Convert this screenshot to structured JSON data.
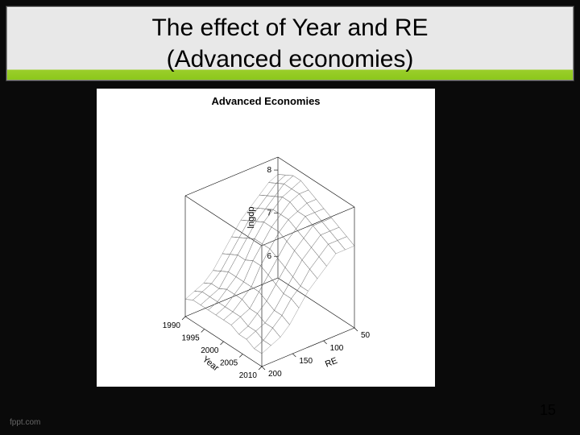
{
  "slide": {
    "title_line1": "The effect of Year and RE",
    "title_line2": "(Advanced economies)",
    "title_fontsize": 30,
    "title_color": "#000000",
    "band_gradient_top": "#e8e8e8",
    "band_gradient_accent": "#8bc81b",
    "background_color": "#0a0a0a",
    "page_number": "15",
    "footer_logo_text": "fppt.com"
  },
  "chart": {
    "type": "surface-3d",
    "title": "Advanced Economies",
    "title_fontsize": 13,
    "title_fontweight": "bold",
    "panel_background": "#ffffff",
    "cube_line_color": "#000000",
    "cube_line_width": 0.6,
    "mesh_color": "#666666",
    "mesh_stroke_width": 0.35,
    "x_axis": {
      "label": "Year",
      "ticks": [
        1990,
        1995,
        2000,
        2005,
        2010
      ],
      "range": [
        1990,
        2010
      ]
    },
    "y_axis": {
      "label": "RE",
      "ticks": [
        50,
        100,
        150,
        200
      ],
      "range": [
        50,
        200
      ]
    },
    "z_axis": {
      "label": "lngdp",
      "ticks": [
        6,
        7,
        8
      ],
      "range": [
        5.5,
        8.3
      ]
    },
    "surface_grid": {
      "year_samples": [
        1990,
        1992,
        1994,
        1996,
        1998,
        2000,
        2002,
        2004,
        2006,
        2008,
        2010
      ],
      "re_samples": [
        50,
        65,
        80,
        95,
        110,
        125,
        140,
        155,
        170,
        185,
        200
      ],
      "z": [
        [
          7.9,
          7.8,
          7.6,
          7.4,
          7.2,
          6.9,
          6.6,
          6.3,
          6.1,
          6.0,
          5.9
        ],
        [
          8.0,
          7.9,
          7.7,
          7.5,
          7.3,
          7.0,
          6.7,
          6.4,
          6.2,
          6.1,
          6.0
        ],
        [
          8.1,
          8.0,
          7.8,
          7.6,
          7.4,
          7.1,
          6.8,
          6.5,
          6.2,
          6.1,
          6.0
        ],
        [
          8.1,
          8.0,
          7.9,
          7.7,
          7.5,
          7.2,
          6.8,
          6.5,
          6.3,
          6.1,
          6.0
        ],
        [
          8.0,
          8.0,
          7.9,
          7.7,
          7.5,
          7.2,
          6.9,
          6.5,
          6.3,
          6.1,
          6.0
        ],
        [
          7.9,
          7.9,
          7.8,
          7.7,
          7.5,
          7.2,
          6.9,
          6.5,
          6.3,
          6.1,
          6.0
        ],
        [
          7.8,
          7.8,
          7.8,
          7.6,
          7.4,
          7.1,
          6.8,
          6.5,
          6.2,
          6.1,
          6.0
        ],
        [
          7.7,
          7.7,
          7.7,
          7.5,
          7.3,
          7.0,
          6.7,
          6.4,
          6.2,
          6.0,
          5.9
        ],
        [
          7.6,
          7.6,
          7.6,
          7.4,
          7.2,
          6.9,
          6.6,
          6.3,
          6.1,
          6.0,
          5.9
        ],
        [
          7.5,
          7.5,
          7.5,
          7.3,
          7.1,
          6.8,
          6.6,
          6.3,
          6.1,
          5.9,
          5.8
        ],
        [
          7.4,
          7.4,
          7.4,
          7.2,
          7.0,
          6.8,
          6.5,
          6.2,
          6.0,
          5.9,
          5.8
        ]
      ]
    },
    "projection": {
      "comment": "isometric-ish 3D cube corners in SVG px (400x320 viewport)",
      "origin_screen": [
        110,
        270
      ],
      "x_vec": [
        8,
        6
      ],
      "y_vec": [
        10,
        -4
      ],
      "z_vec": [
        0,
        -60
      ]
    }
  }
}
